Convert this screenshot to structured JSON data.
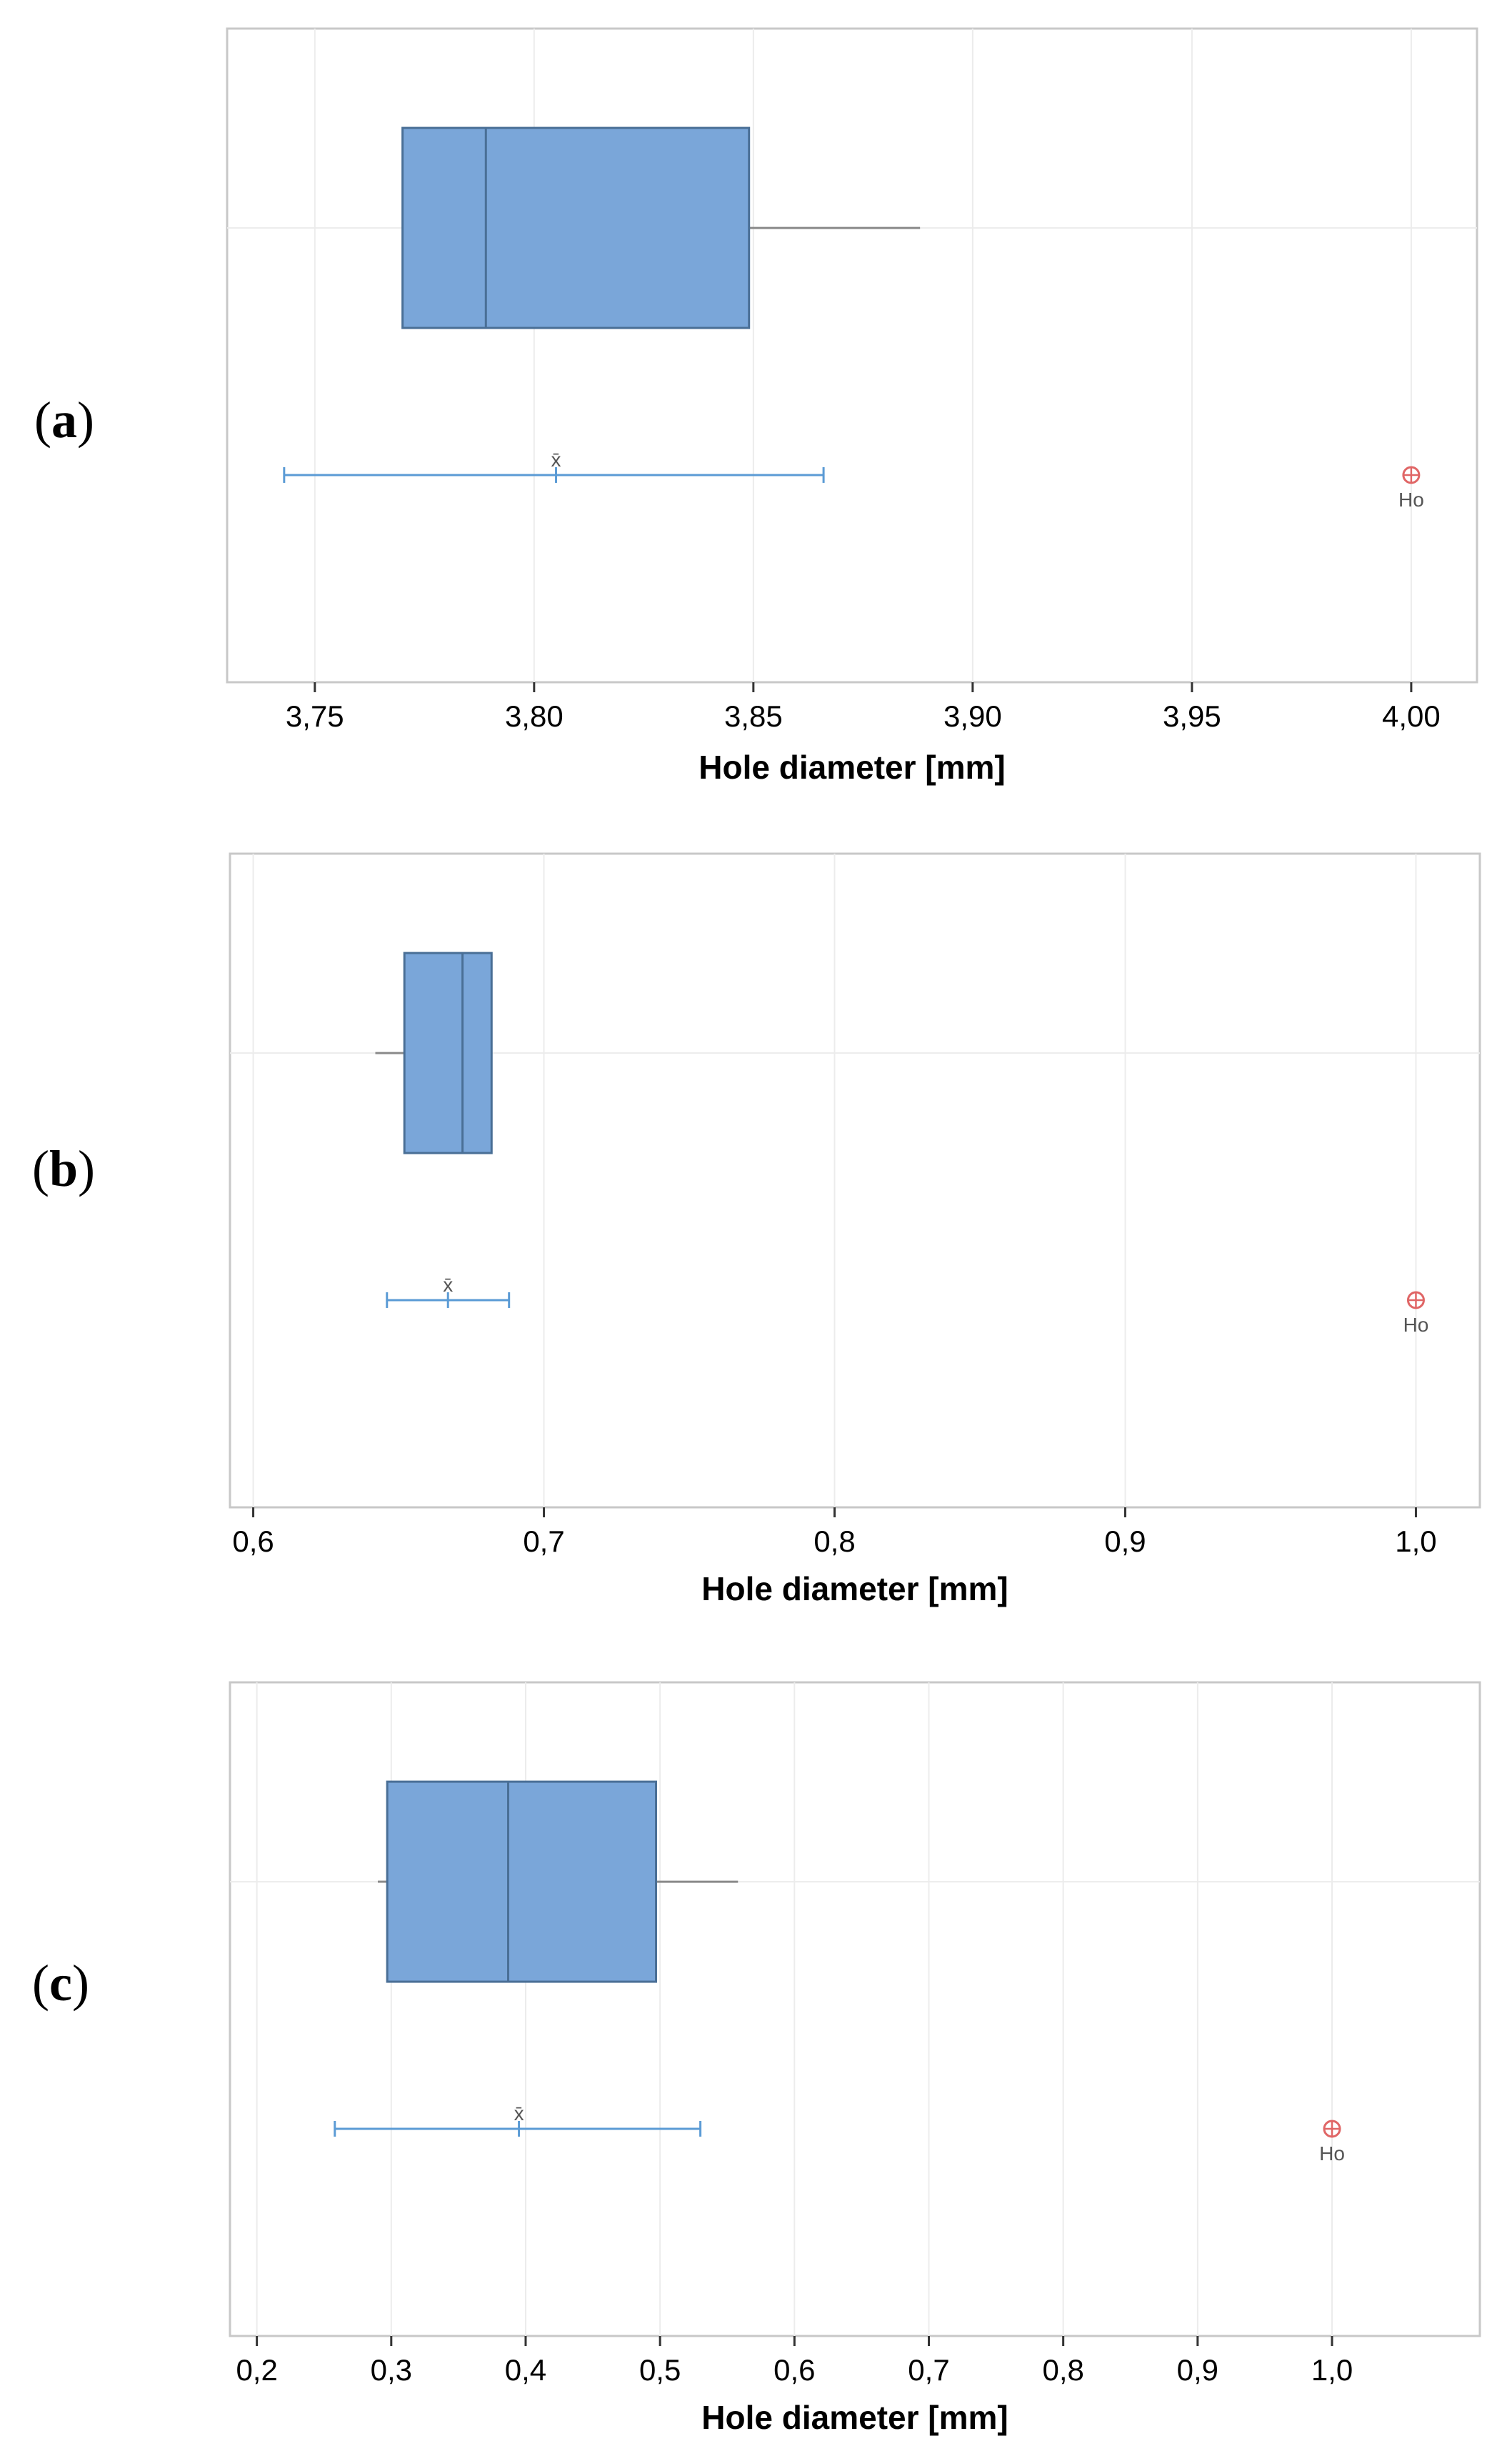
{
  "chart_data": [
    {
      "type": "boxplot",
      "panel_label": "a",
      "xlabel": "Hole diameter [mm]",
      "ticks": [
        "3,75",
        "3,80",
        "3,85",
        "3,90",
        "3,95",
        "4,00"
      ],
      "xlim": [
        3.73,
        4.015
      ],
      "grid": true,
      "box": {
        "whisker_low": 3.77,
        "q1": 3.77,
        "median": 3.789,
        "q3": 3.849,
        "whisker_high": 3.888
      },
      "mean_ci": {
        "mean": 3.805,
        "low": 3.743,
        "high": 3.866,
        "mark": "x̄"
      },
      "hypothesis": {
        "value": 4.0,
        "label": "Ho"
      },
      "colors": {
        "box": "#7aa6d9",
        "ci": "#5b9bd5",
        "ho": "#e06666"
      }
    },
    {
      "type": "boxplot",
      "panel_label": "b",
      "xlabel": "Hole diameter [mm]",
      "ticks": [
        "0,6",
        "0,7",
        "0,8",
        "0,9",
        "1,0"
      ],
      "xlim": [
        0.592,
        1.022
      ],
      "grid": true,
      "box": {
        "whisker_low": 0.642,
        "q1": 0.652,
        "median": 0.672,
        "q3": 0.682,
        "whisker_high": 0.682
      },
      "mean_ci": {
        "mean": 0.667,
        "low": 0.646,
        "high": 0.688,
        "mark": "x̄"
      },
      "hypothesis": {
        "value": 1.0,
        "label": "Ho"
      },
      "colors": {
        "box": "#7aa6d9",
        "ci": "#5b9bd5",
        "ho": "#e06666"
      }
    },
    {
      "type": "boxplot",
      "panel_label": "c",
      "xlabel": "Hole diameter [mm]",
      "ticks": [
        "0,2",
        "0,3",
        "0,4",
        "0,5",
        "0,6",
        "0,7",
        "0,8",
        "0,9",
        "1,0"
      ],
      "xlim": [
        0.18,
        1.11
      ],
      "grid": true,
      "box": {
        "whisker_low": 0.29,
        "q1": 0.297,
        "median": 0.387,
        "q3": 0.497,
        "whisker_high": 0.558
      },
      "mean_ci": {
        "mean": 0.395,
        "low": 0.258,
        "high": 0.53,
        "mark": "x̄"
      },
      "hypothesis": {
        "value": 1.0,
        "label": "Ho"
      },
      "colors": {
        "box": "#7aa6d9",
        "ci": "#5b9bd5",
        "ho": "#e06666"
      }
    }
  ]
}
